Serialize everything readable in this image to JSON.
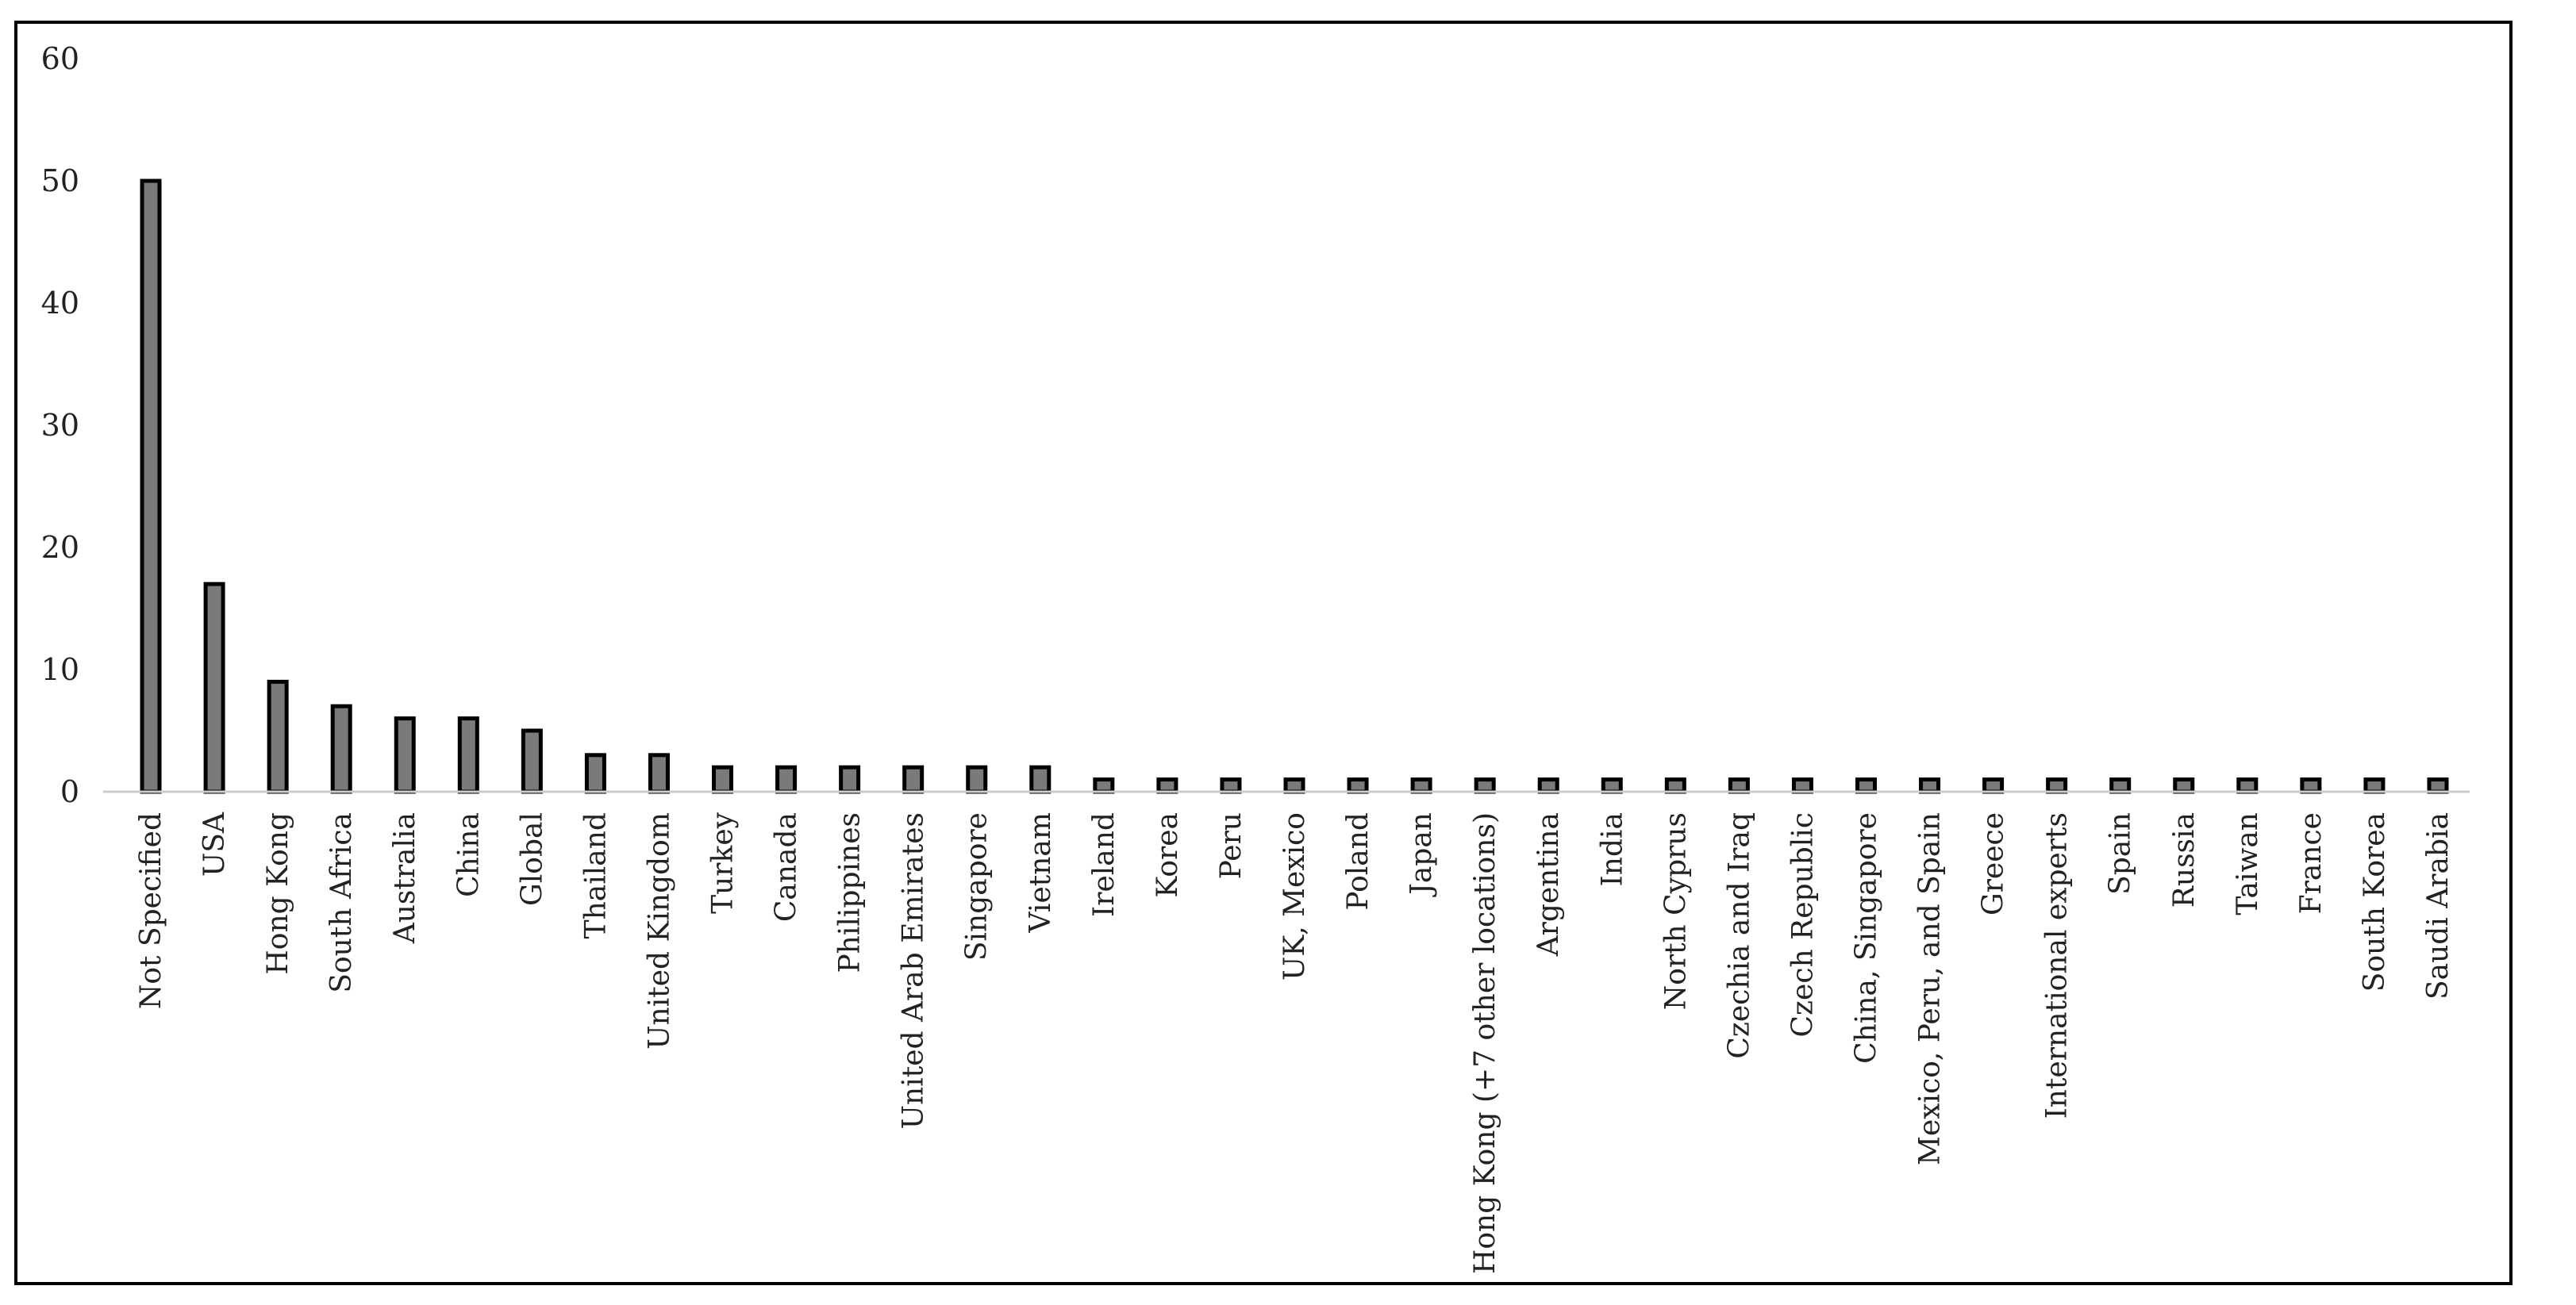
{
  "colors": {
    "bar_fill": "#7a7a7a",
    "bar_stroke": "#000000",
    "axis": "#cccccc",
    "text": "#222222"
  },
  "chart_data": {
    "type": "bar",
    "title": "",
    "xlabel": "",
    "ylabel": "",
    "ylim": [
      0,
      60
    ],
    "yticks": [
      "0",
      "10",
      "20",
      "30",
      "40",
      "50",
      "60"
    ],
    "grid": false,
    "legend": "none",
    "categories": [
      "Not Specified",
      "USA",
      "Hong Kong",
      "South Africa",
      "Australia",
      "China",
      "Global",
      "Thailand",
      "United Kingdom",
      "Turkey",
      "Canada",
      "Philippines",
      "United Arab Emirates",
      "Singapore",
      "Vietnam",
      "Ireland",
      "Korea",
      "Peru",
      "UK, Mexico",
      "Poland",
      "Japan",
      "Hong Kong (+7 other locations)",
      "Argentina",
      "India",
      "North Cyprus",
      "Czechia and Iraq",
      "Czech Republic",
      "China, Singapore",
      "Mexico, Peru, and Spain",
      "Greece",
      "International experts",
      "Spain",
      "Russia",
      "Taiwan",
      "France",
      "South Korea",
      "Saudi Arabia"
    ],
    "values": [
      50,
      17,
      9,
      7,
      6,
      6,
      5,
      3,
      3,
      2,
      2,
      2,
      2,
      2,
      2,
      1,
      1,
      1,
      1,
      1,
      1,
      1,
      1,
      1,
      1,
      1,
      1,
      1,
      1,
      1,
      1,
      1,
      1,
      1,
      1,
      1,
      1
    ]
  }
}
